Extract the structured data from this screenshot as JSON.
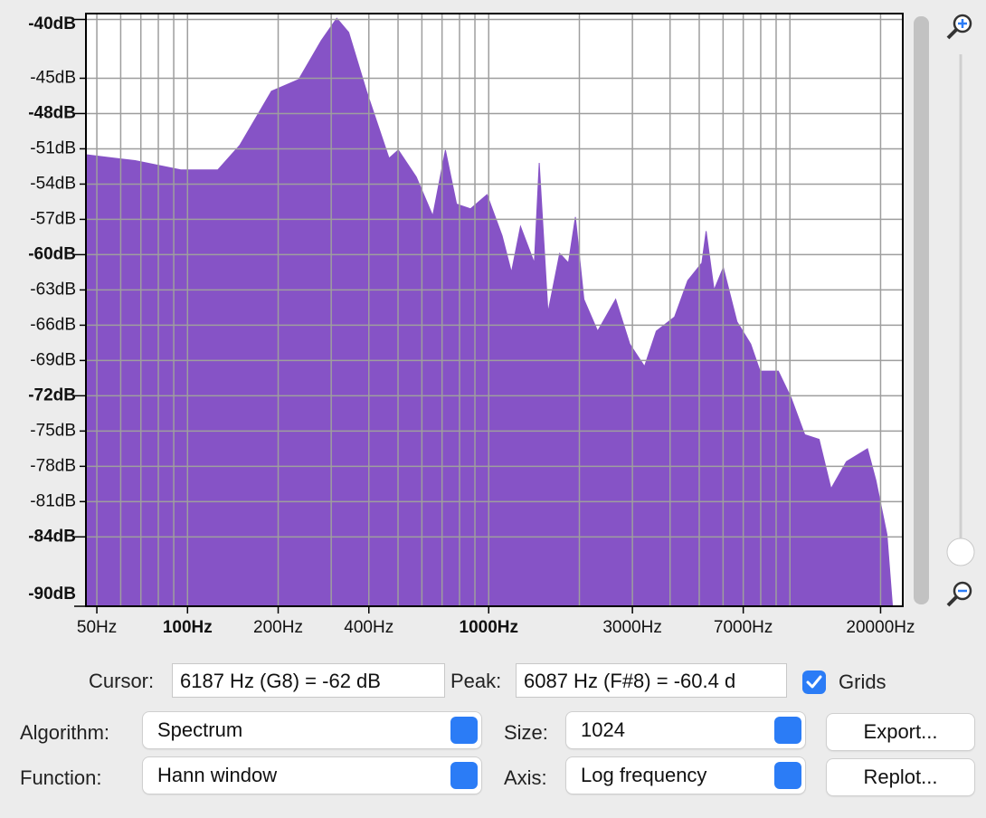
{
  "chart_data": {
    "type": "area",
    "xscale": "log",
    "grid": true,
    "color": "#8653c6",
    "x": [
      46,
      67,
      95,
      126,
      149,
      190,
      234,
      278,
      313,
      343,
      393,
      467,
      501,
      575,
      652,
      718,
      782,
      870,
      987,
      1108,
      1190,
      1275,
      1417,
      1471,
      1573,
      1720,
      1840,
      1940,
      2070,
      2300,
      2640,
      2940,
      3290,
      3600,
      4140,
      4580,
      5100,
      5270,
      5600,
      6010,
      6670,
      7410,
      7960,
      9150,
      10100,
      11200,
      12500,
      13700,
      15400,
      18100,
      19300,
      21000,
      21900
    ],
    "values": [
      -51.5,
      -52.0,
      -52.8,
      -52.8,
      -50.7,
      -46.1,
      -45.1,
      -41.8,
      -39.9,
      -41.1,
      -46.1,
      -51.8,
      -51.1,
      -53.4,
      -56.7,
      -51.1,
      -55.7,
      -56.1,
      -54.9,
      -58.4,
      -61.5,
      -57.6,
      -60.7,
      -52.2,
      -64.9,
      -59.9,
      -60.7,
      -56.8,
      -63.8,
      -66.5,
      -63.8,
      -67.6,
      -69.5,
      -66.5,
      -65.3,
      -62.2,
      -60.7,
      -58.0,
      -63.0,
      -61.1,
      -65.7,
      -67.6,
      -69.9,
      -69.9,
      -72.2,
      -75.3,
      -75.7,
      -79.9,
      -77.6,
      -76.5,
      -79.2,
      -83.8,
      -89.9
    ],
    "xlim": [
      46,
      23700
    ],
    "ylim": [
      -89.9,
      -39.5
    ],
    "xticks": [
      {
        "value": 50,
        "label": "50Hz"
      },
      {
        "value": 100,
        "label": "100Hz",
        "bold": true
      },
      {
        "value": 200,
        "label": "200Hz"
      },
      {
        "value": 400,
        "label": "400Hz"
      },
      {
        "value": 1000,
        "label": "1000Hz",
        "bold": true
      },
      {
        "value": 3000,
        "label": "3000Hz"
      },
      {
        "value": 7000,
        "label": "7000Hz"
      },
      {
        "value": 20000,
        "label": "20000Hz"
      }
    ],
    "xgrid": [
      50,
      60,
      70,
      80,
      90,
      100,
      200,
      300,
      400,
      500,
      600,
      700,
      800,
      900,
      1000,
      2000,
      3000,
      4000,
      5000,
      6000,
      7000,
      8000,
      9000,
      10000,
      20000
    ],
    "yticks": [
      {
        "value": -40,
        "label": "-40dB",
        "bold": true
      },
      {
        "value": -45,
        "label": "-45dB"
      },
      {
        "value": -48,
        "label": "-48dB",
        "bold": true
      },
      {
        "value": -51,
        "label": "-51dB"
      },
      {
        "value": -54,
        "label": "-54dB"
      },
      {
        "value": -57,
        "label": "-57dB"
      },
      {
        "value": -60,
        "label": "-60dB",
        "bold": true
      },
      {
        "value": -63,
        "label": "-63dB"
      },
      {
        "value": -66,
        "label": "-66dB"
      },
      {
        "value": -69,
        "label": "-69dB"
      },
      {
        "value": -72,
        "label": "-72dB",
        "bold": true
      },
      {
        "value": -75,
        "label": "-75dB"
      },
      {
        "value": -78,
        "label": "-78dB"
      },
      {
        "value": -81,
        "label": "-81dB"
      },
      {
        "value": -84,
        "label": "-84dB",
        "bold": true
      },
      {
        "value": -90,
        "label": "-90dB",
        "bold": true
      }
    ]
  },
  "controls": {
    "cursor_label": "Cursor:",
    "cursor_value": "6187 Hz (G8) = -62 dB",
    "peak_label": "Peak:",
    "peak_value": "6087 Hz (F#8) = -60.4 d",
    "grids_label": "Grids",
    "grids_checked": true,
    "algorithm_label": "Algorithm:",
    "algorithm_value": "Spectrum",
    "size_label": "Size:",
    "size_value": "1024",
    "export_button": "Export...",
    "function_label": "Function:",
    "function_value": "Hann window",
    "axis_label": "Axis:",
    "axis_value": "Log frequency",
    "replot_button": "Replot..."
  }
}
